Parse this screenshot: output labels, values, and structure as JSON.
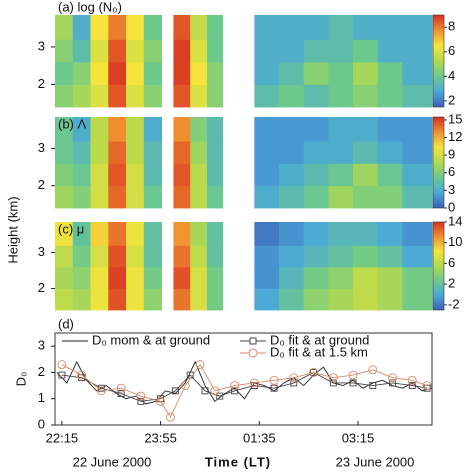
{
  "chart_data": [
    {
      "type": "heatmap",
      "title": "(a) log (N₀)",
      "bins": [
        "22:08",
        "22:26",
        "22:44",
        "23:02",
        "23:20",
        "23:38",
        "23:56",
        "00:08",
        "00:25",
        "00:42",
        "00:58",
        "01:30",
        "01:55",
        "02:20",
        "02:45",
        "03:10",
        "03:35",
        "04:00",
        "04:30"
      ],
      "y_bins": [
        1.4,
        2.0,
        2.6,
        3.2,
        3.85
      ],
      "values": [
        [
          4.5,
          5,
          6,
          8.5,
          6,
          4.5,
          null,
          8.5,
          6,
          4.5,
          null,
          3.5,
          4,
          3.5,
          4,
          4.5,
          4,
          3.5
        ],
        [
          4,
          4.5,
          6.5,
          8.8,
          6.5,
          4,
          null,
          8.8,
          6.5,
          4.5,
          null,
          3,
          3.5,
          4.5,
          4,
          5,
          4,
          3
        ],
        [
          4.5,
          3.5,
          6,
          8.5,
          6,
          4.5,
          null,
          8.8,
          6,
          4,
          null,
          3,
          3,
          3.5,
          3.5,
          4,
          3,
          3
        ],
        [
          5,
          3,
          6.5,
          8,
          6.5,
          4,
          null,
          8.5,
          5.5,
          4,
          null,
          3,
          3,
          3,
          3.5,
          3,
          3,
          3
        ]
      ],
      "xlim": [
        "22:08",
        "04:30"
      ],
      "ylim": [
        1.4,
        3.85
      ],
      "yticks": [
        2,
        3
      ],
      "zlim": [
        1.5,
        9
      ],
      "zticks": [
        2,
        4,
        6,
        8
      ],
      "colormap": [
        "#3f5fb8",
        "#4aa8d8",
        "#6cc98c",
        "#b4d94e",
        "#f5e43c",
        "#f09030",
        "#d7301f"
      ]
    },
    {
      "type": "heatmap",
      "title": "(b) Λ",
      "bins": [
        "22:08",
        "22:26",
        "22:44",
        "23:02",
        "23:20",
        "23:38",
        "23:56",
        "00:08",
        "00:25",
        "00:42",
        "00:58",
        "01:30",
        "01:55",
        "02:20",
        "02:45",
        "03:10",
        "03:35",
        "04:00",
        "04:30"
      ],
      "y_bins": [
        1.4,
        2.0,
        2.6,
        3.2,
        3.85
      ],
      "values": [
        [
          7,
          6,
          9,
          14,
          9,
          5,
          null,
          14,
          8,
          5,
          null,
          3,
          4,
          5,
          7,
          6,
          6,
          4
        ],
        [
          6,
          5,
          9,
          14.5,
          9,
          4,
          null,
          14.5,
          8,
          4,
          null,
          2,
          3,
          4,
          5,
          7,
          5,
          3
        ],
        [
          5,
          4,
          8,
          14,
          8,
          4,
          null,
          14,
          7,
          4,
          null,
          2,
          2,
          3,
          3,
          4,
          3,
          2
        ],
        [
          5,
          3,
          8,
          13,
          8,
          3,
          null,
          13,
          6,
          4,
          null,
          2,
          2,
          2,
          3,
          3,
          2,
          2
        ]
      ],
      "xlim": [
        "22:08",
        "04:30"
      ],
      "ylim": [
        1.4,
        3.85
      ],
      "yticks": [
        2,
        3
      ],
      "zlim": [
        0,
        15.5
      ],
      "zticks": [
        0,
        3,
        6,
        9,
        12,
        15
      ],
      "colormap": [
        "#3f5fb8",
        "#4aa8d8",
        "#6cc98c",
        "#b4d94e",
        "#f5e43c",
        "#f09030",
        "#d7301f"
      ]
    },
    {
      "type": "heatmap",
      "title": "(c) μ",
      "ylabel": "Height (km)",
      "bins": [
        "22:08",
        "22:26",
        "22:44",
        "23:02",
        "23:20",
        "23:38",
        "23:56",
        "00:08",
        "00:25",
        "00:42",
        "00:58",
        "01:30",
        "01:55",
        "02:20",
        "02:45",
        "03:10",
        "03:35",
        "04:00",
        "04:30"
      ],
      "y_bins": [
        1.4,
        2.0,
        2.6,
        3.2,
        3.85
      ],
      "values": [
        [
          6,
          5,
          8,
          13,
          8,
          4,
          null,
          12,
          7,
          3,
          null,
          0,
          2,
          4,
          5,
          6,
          5,
          3
        ],
        [
          5,
          4,
          8,
          13.5,
          8,
          3,
          null,
          13,
          7,
          3,
          null,
          -1,
          1,
          3,
          4,
          6,
          5,
          3
        ],
        [
          6,
          3,
          7,
          13,
          7,
          2,
          null,
          12,
          6,
          2,
          null,
          -1,
          0,
          1,
          2,
          3,
          2,
          0
        ],
        [
          8,
          2,
          9,
          12,
          8,
          2,
          null,
          11,
          5,
          2,
          null,
          -2,
          -1,
          0,
          1,
          1,
          0,
          -1
        ]
      ],
      "xlim": [
        "22:08",
        "04:30"
      ],
      "ylim": [
        1.4,
        3.85
      ],
      "yticks": [
        2,
        3
      ],
      "zlim": [
        -3,
        14
      ],
      "zticks": [
        -2,
        2,
        6,
        10,
        14
      ],
      "colormap": [
        "#3f5fb8",
        "#4aa8d8",
        "#6cc98c",
        "#b4d94e",
        "#f5e43c",
        "#f09030",
        "#d7301f"
      ]
    },
    {
      "type": "line",
      "title": "(d)",
      "ylabel": "D₀",
      "xlabel": "Time (LT)",
      "annotations": [
        "22 June 2000",
        "23 June 2000"
      ],
      "legend": "top",
      "xlim": [
        "22:08",
        "04:30"
      ],
      "xticks": [
        "22:15",
        "23:55",
        "01:35",
        "03:15"
      ],
      "ylim": [
        0,
        3.5
      ],
      "yticks": [
        0,
        1,
        2,
        3
      ],
      "series": [
        {
          "name": "D₀ mom & at ground",
          "color": "#222222",
          "marker": "none",
          "x": [
            "22:10",
            "22:20",
            "22:30",
            "22:40",
            "22:50",
            "23:00",
            "23:10",
            "23:20",
            "23:30",
            "23:40",
            "23:50",
            "00:00",
            "00:10",
            "00:20",
            "00:30",
            "00:40",
            "00:50",
            "01:00",
            "01:10",
            "01:20",
            "01:30",
            "01:40",
            "01:50",
            "02:00",
            "02:10",
            "02:20",
            "02:30",
            "02:40",
            "02:50",
            "03:00",
            "03:10",
            "03:20",
            "03:30",
            "03:40",
            "03:50",
            "04:00",
            "04:10",
            "04:20",
            "04:30"
          ],
          "values": [
            2.0,
            1.6,
            2.4,
            1.7,
            1.3,
            1.5,
            1.2,
            1.0,
            1.1,
            0.8,
            0.9,
            1.3,
            1.2,
            1.6,
            2.4,
            1.5,
            0.9,
            1.2,
            1.4,
            1.0,
            1.6,
            1.5,
            1.3,
            1.6,
            1.8,
            1.5,
            1.9,
            2.2,
            1.6,
            1.5,
            1.7,
            1.4,
            1.6,
            1.7,
            1.5,
            1.4,
            1.6,
            1.3,
            1.4
          ]
        },
        {
          "name": "D₀ fit & at ground",
          "color": "#444444",
          "marker": "square",
          "x": [
            "22:15",
            "22:35",
            "22:55",
            "23:15",
            "23:35",
            "23:55",
            "00:10",
            "00:25",
            "00:40",
            "00:55",
            "01:10",
            "01:30",
            "01:50",
            "02:10",
            "02:30",
            "02:50",
            "03:10",
            "03:30",
            "03:50",
            "04:10",
            "04:25"
          ],
          "values": [
            1.9,
            1.8,
            1.4,
            1.2,
            0.9,
            1.0,
            1.3,
            1.9,
            1.3,
            1.1,
            1.3,
            1.5,
            1.4,
            1.6,
            2.0,
            1.6,
            1.6,
            1.5,
            1.6,
            1.5,
            1.4
          ]
        },
        {
          "name": "D₀ fit & at 1.5 km",
          "color": "#d98a6a",
          "marker": "circle",
          "x": [
            "22:15",
            "22:35",
            "22:55",
            "23:15",
            "23:35",
            "23:55",
            "00:05",
            "00:20",
            "00:35",
            "00:50",
            "01:10",
            "01:30",
            "01:50",
            "02:10",
            "02:30",
            "02:50",
            "03:10",
            "03:30",
            "03:50",
            "04:10",
            "04:25"
          ],
          "values": [
            2.3,
            1.9,
            1.3,
            1.4,
            1.1,
            0.9,
            0.3,
            1.5,
            2.3,
            1.3,
            1.5,
            1.6,
            1.7,
            1.8,
            2.0,
            1.8,
            1.9,
            2.1,
            1.8,
            1.7,
            1.5
          ]
        }
      ]
    }
  ]
}
